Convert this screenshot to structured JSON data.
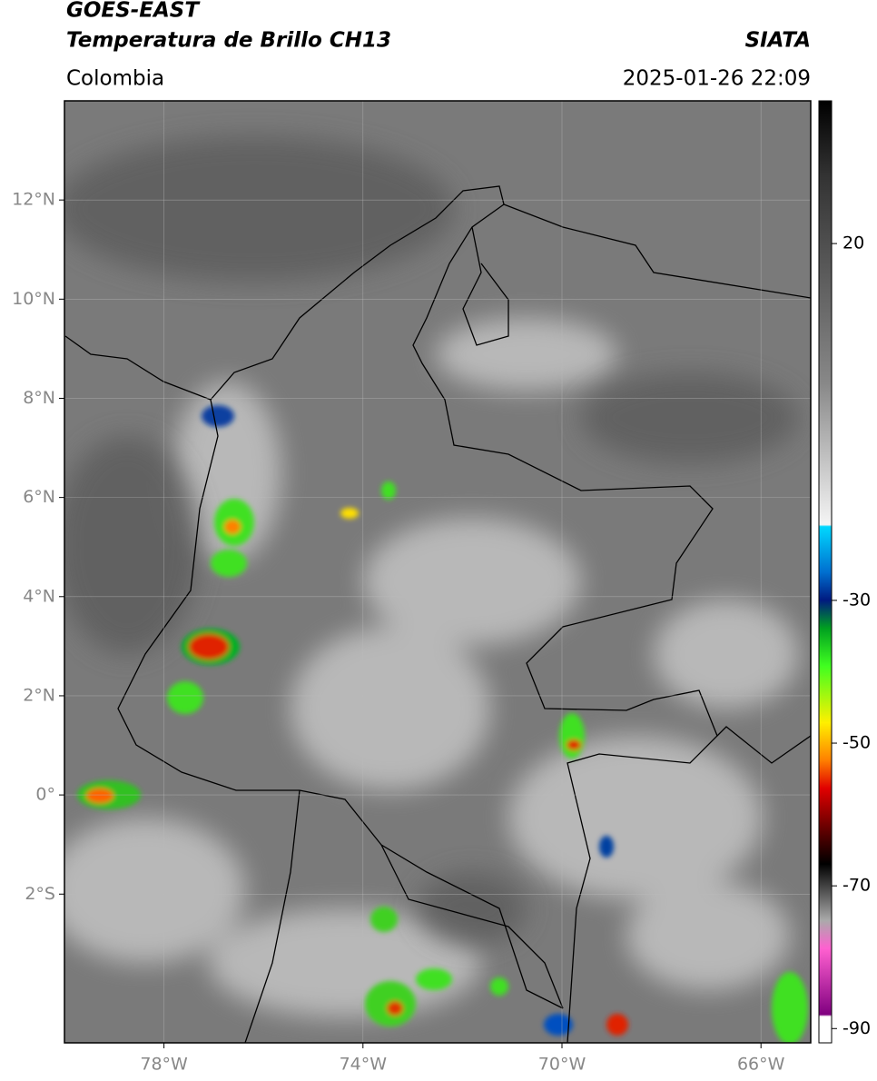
{
  "header": {
    "title": "GOES-EAST",
    "subtitle": "Temperatura de Brillo CH13",
    "source": "SIATA",
    "region": "Colombia",
    "datetime": "2025-01-26 22:09"
  },
  "map": {
    "xlim": [
      -80,
      -65
    ],
    "ylim": [
      -5,
      14
    ],
    "xticks": [
      {
        "value": -78,
        "label": "78°W"
      },
      {
        "value": -74,
        "label": "74°W"
      },
      {
        "value": -70,
        "label": "70°W"
      },
      {
        "value": -66,
        "label": "66°W"
      }
    ],
    "yticks": [
      {
        "value": 12,
        "label": "12°N"
      },
      {
        "value": 10,
        "label": "10°N"
      },
      {
        "value": 8,
        "label": "8°N"
      },
      {
        "value": 6,
        "label": "6°N"
      },
      {
        "value": 4,
        "label": "4°N"
      },
      {
        "value": 2,
        "label": "2°N"
      },
      {
        "value": 0,
        "label": "0°"
      },
      {
        "value": -2,
        "label": "2°S"
      }
    ],
    "colorbar": {
      "lim": [
        -92,
        40
      ],
      "ticks": [
        20,
        -30,
        -50,
        -70,
        -90
      ]
    }
  }
}
